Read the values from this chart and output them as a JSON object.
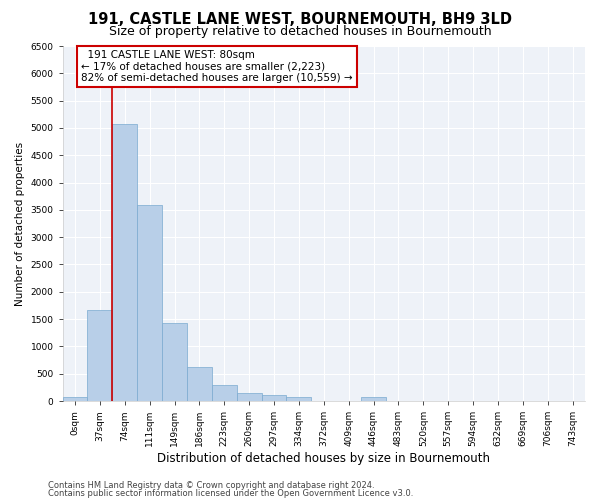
{
  "title": "191, CASTLE LANE WEST, BOURNEMOUTH, BH9 3LD",
  "subtitle": "Size of property relative to detached houses in Bournemouth",
  "xlabel": "Distribution of detached houses by size in Bournemouth",
  "ylabel": "Number of detached properties",
  "footer1": "Contains HM Land Registry data © Crown copyright and database right 2024.",
  "footer2": "Contains public sector information licensed under the Open Government Licence v3.0.",
  "annotation_title": "191 CASTLE LANE WEST: 80sqm",
  "annotation_line1": "← 17% of detached houses are smaller (2,223)",
  "annotation_line2": "82% of semi-detached houses are larger (10,559) →",
  "bar_color": "#b8cfe8",
  "bar_edge_color": "#7aaad0",
  "marker_color": "#cc0000",
  "categories": [
    "0sqm",
    "37sqm",
    "74sqm",
    "111sqm",
    "149sqm",
    "186sqm",
    "223sqm",
    "260sqm",
    "297sqm",
    "334sqm",
    "372sqm",
    "409sqm",
    "446sqm",
    "483sqm",
    "520sqm",
    "557sqm",
    "594sqm",
    "632sqm",
    "669sqm",
    "706sqm",
    "743sqm"
  ],
  "values": [
    75,
    1670,
    5070,
    3590,
    1430,
    620,
    300,
    155,
    110,
    75,
    0,
    0,
    75,
    0,
    0,
    0,
    0,
    0,
    0,
    0,
    0
  ],
  "ylim": [
    0,
    6500
  ],
  "yticks": [
    0,
    500,
    1000,
    1500,
    2000,
    2500,
    3000,
    3500,
    4000,
    4500,
    5000,
    5500,
    6000,
    6500
  ],
  "bg_color": "#eef2f8",
  "grid_color": "#ffffff",
  "title_fontsize": 10.5,
  "subtitle_fontsize": 9,
  "xlabel_fontsize": 8.5,
  "ylabel_fontsize": 7.5,
  "tick_fontsize": 6.5,
  "annotation_fontsize": 7.5,
  "footer_fontsize": 6
}
